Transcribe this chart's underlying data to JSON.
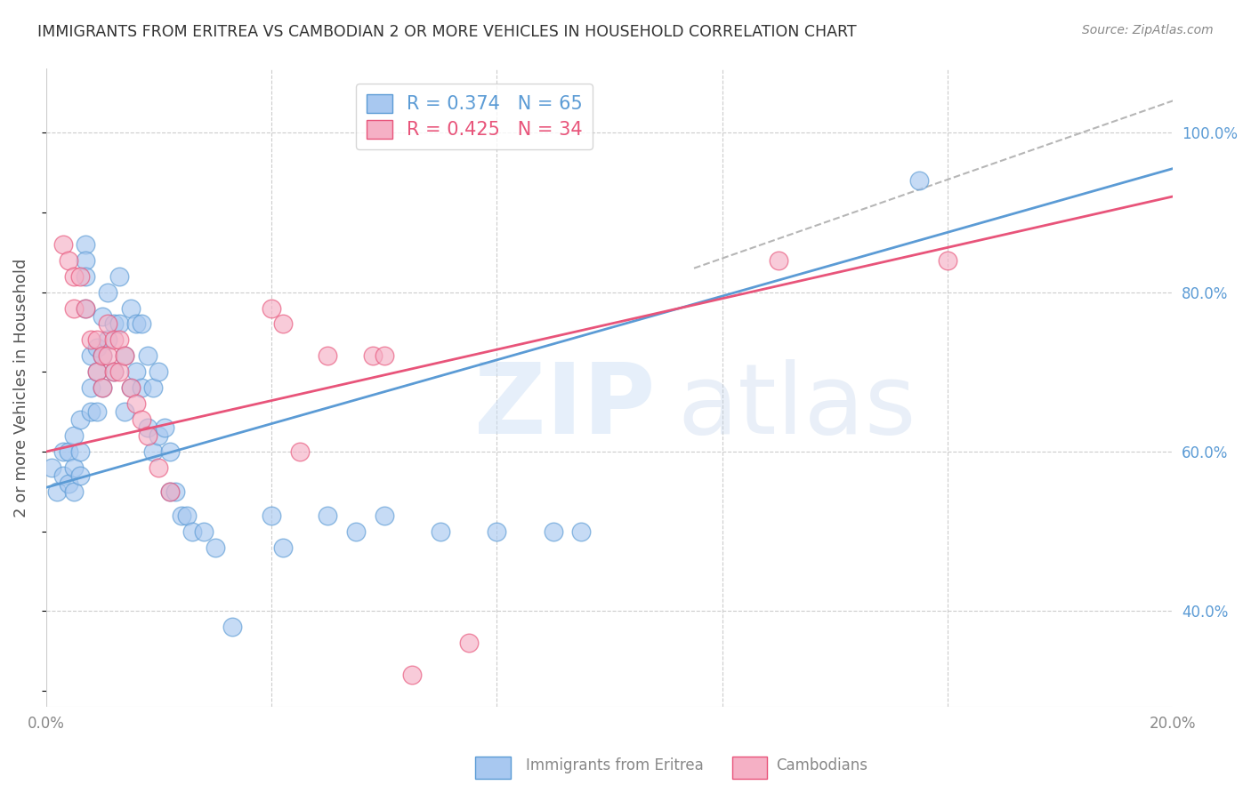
{
  "title": "IMMIGRANTS FROM ERITREA VS CAMBODIAN 2 OR MORE VEHICLES IN HOUSEHOLD CORRELATION CHART",
  "source": "Source: ZipAtlas.com",
  "ylabel": "2 or more Vehicles in Household",
  "xlim": [
    0.0,
    0.2
  ],
  "ylim": [
    0.28,
    1.08
  ],
  "y_ticks_right": [
    0.4,
    0.6,
    0.8,
    1.0
  ],
  "y_tick_labels_right": [
    "40.0%",
    "60.0%",
    "80.0%",
    "100.0%"
  ],
  "blue_R": 0.374,
  "blue_N": 65,
  "pink_R": 0.425,
  "pink_N": 34,
  "background_color": "#ffffff",
  "grid_color": "#cccccc",
  "blue_color": "#a8c8f0",
  "blue_line_color": "#5b9bd5",
  "pink_color": "#f5b0c5",
  "pink_line_color": "#e8547a",
  "dashed_line_color": "#aaaaaa",
  "title_color": "#333333",
  "right_axis_color": "#5b9bd5",
  "blue_line_x0": 0.0,
  "blue_line_y0": 0.555,
  "blue_line_x1": 0.2,
  "blue_line_y1": 0.955,
  "pink_line_x0": 0.0,
  "pink_line_y0": 0.6,
  "pink_line_x1": 0.2,
  "pink_line_y1": 0.92,
  "dash_line_x0": 0.115,
  "dash_line_y0": 0.83,
  "dash_line_x1": 0.2,
  "dash_line_y1": 1.04,
  "blue_scatter_x": [
    0.001,
    0.002,
    0.003,
    0.003,
    0.004,
    0.004,
    0.005,
    0.005,
    0.005,
    0.006,
    0.006,
    0.006,
    0.007,
    0.007,
    0.007,
    0.007,
    0.008,
    0.008,
    0.008,
    0.009,
    0.009,
    0.009,
    0.01,
    0.01,
    0.01,
    0.011,
    0.011,
    0.012,
    0.012,
    0.013,
    0.013,
    0.014,
    0.014,
    0.015,
    0.015,
    0.016,
    0.016,
    0.017,
    0.017,
    0.018,
    0.018,
    0.019,
    0.019,
    0.02,
    0.02,
    0.021,
    0.022,
    0.022,
    0.023,
    0.024,
    0.025,
    0.026,
    0.028,
    0.03,
    0.033,
    0.04,
    0.042,
    0.05,
    0.055,
    0.06,
    0.07,
    0.08,
    0.09,
    0.095,
    0.155
  ],
  "blue_scatter_y": [
    0.58,
    0.55,
    0.6,
    0.57,
    0.6,
    0.56,
    0.62,
    0.58,
    0.55,
    0.64,
    0.6,
    0.57,
    0.86,
    0.84,
    0.82,
    0.78,
    0.72,
    0.68,
    0.65,
    0.73,
    0.7,
    0.65,
    0.77,
    0.72,
    0.68,
    0.8,
    0.74,
    0.76,
    0.7,
    0.82,
    0.76,
    0.72,
    0.65,
    0.78,
    0.68,
    0.76,
    0.7,
    0.76,
    0.68,
    0.72,
    0.63,
    0.68,
    0.6,
    0.7,
    0.62,
    0.63,
    0.6,
    0.55,
    0.55,
    0.52,
    0.52,
    0.5,
    0.5,
    0.48,
    0.38,
    0.52,
    0.48,
    0.52,
    0.5,
    0.52,
    0.5,
    0.5,
    0.5,
    0.5,
    0.94
  ],
  "pink_scatter_x": [
    0.003,
    0.004,
    0.005,
    0.005,
    0.006,
    0.007,
    0.008,
    0.009,
    0.009,
    0.01,
    0.01,
    0.011,
    0.011,
    0.012,
    0.012,
    0.013,
    0.013,
    0.014,
    0.015,
    0.016,
    0.017,
    0.018,
    0.02,
    0.022,
    0.04,
    0.042,
    0.045,
    0.05,
    0.058,
    0.06,
    0.065,
    0.075,
    0.13,
    0.16
  ],
  "pink_scatter_y": [
    0.86,
    0.84,
    0.82,
    0.78,
    0.82,
    0.78,
    0.74,
    0.74,
    0.7,
    0.72,
    0.68,
    0.76,
    0.72,
    0.74,
    0.7,
    0.74,
    0.7,
    0.72,
    0.68,
    0.66,
    0.64,
    0.62,
    0.58,
    0.55,
    0.78,
    0.76,
    0.6,
    0.72,
    0.72,
    0.72,
    0.32,
    0.36,
    0.84,
    0.84
  ]
}
